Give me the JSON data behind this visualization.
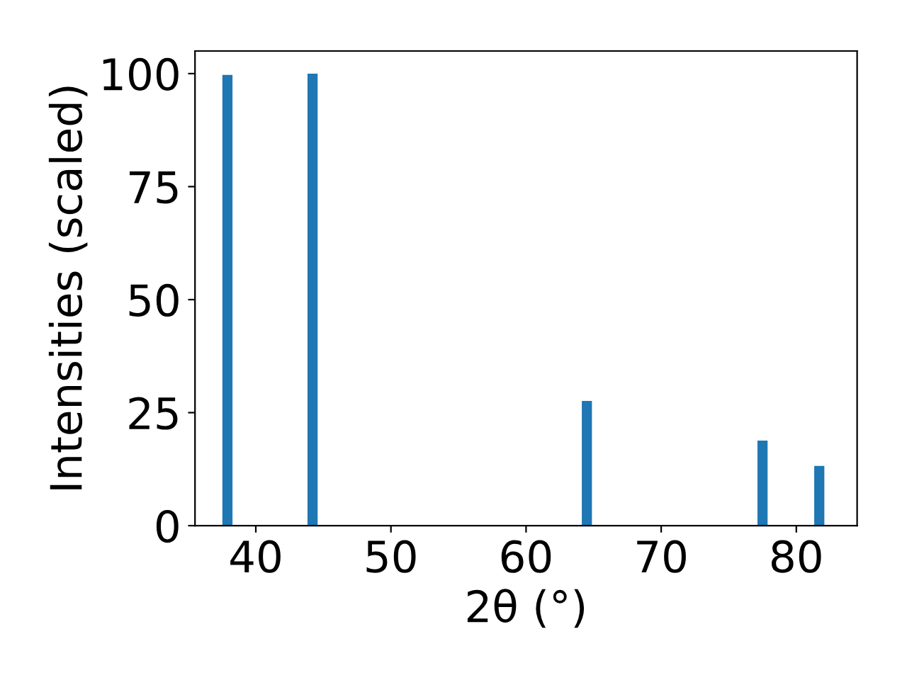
{
  "chart_data": {
    "type": "bar",
    "xlabel": "2θ (°)",
    "ylabel": "Intensities (scaled)",
    "x": [
      37.9,
      44.2,
      64.5,
      77.5,
      81.7
    ],
    "series": [
      {
        "color": "#1f77b4",
        "values": [
          99.7,
          100,
          27.6,
          18.8,
          13.2
        ]
      }
    ],
    "xlim": [
      35.5,
      84.5
    ],
    "xticks": [
      40,
      50,
      60,
      70,
      80
    ],
    "ylim": [
      0,
      105
    ],
    "yticks": [
      0,
      25,
      50,
      75,
      100
    ],
    "grid": false,
    "legend": false
  }
}
